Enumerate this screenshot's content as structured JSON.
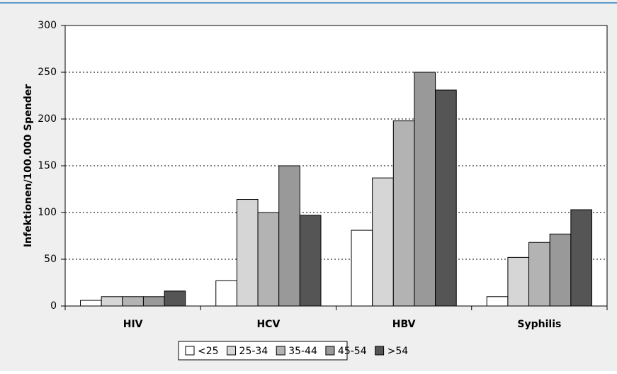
{
  "chart_data": {
    "type": "bar",
    "y_label": "Infektionen/100.000 Spender",
    "categories": [
      "HIV",
      "HCV",
      "HBV",
      "Syphilis"
    ],
    "series": [
      {
        "name": "<25",
        "color": "#ffffff",
        "values": [
          6,
          27,
          81,
          10
        ]
      },
      {
        "name": "25-34",
        "color": "#d6d6d6",
        "values": [
          10,
          114,
          137,
          52
        ]
      },
      {
        "name": "35-44",
        "color": "#b3b3b3",
        "values": [
          10,
          100,
          198,
          68
        ]
      },
      {
        "name": "45-54",
        "color": "#999999",
        "values": [
          10,
          150,
          250,
          77
        ]
      },
      {
        "name": ">54",
        "color": "#555555",
        "values": [
          16,
          97,
          231,
          103
        ]
      }
    ],
    "ylim": [
      0,
      300
    ],
    "yticks": [
      0,
      50,
      100,
      150,
      200,
      250,
      300
    ],
    "grid": true,
    "legend": "bottom"
  }
}
